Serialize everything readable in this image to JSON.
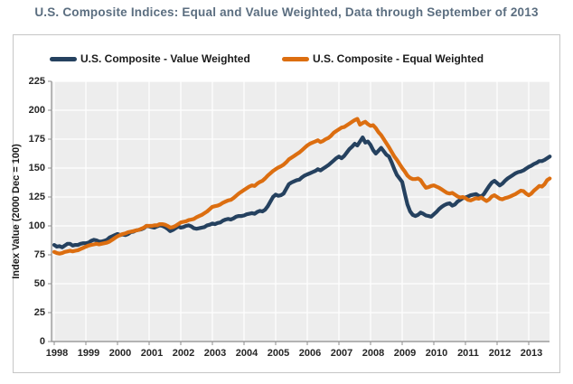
{
  "title": "U.S. Composite Indices: Equal and Value Weighted, Data through September of 2013",
  "legend": [
    {
      "label": "U.S. Composite - Value Weighted",
      "color": "#25415f"
    },
    {
      "label": "U.S. Composite - Equal Weighted",
      "color": "#dc6e10"
    }
  ],
  "y_axis_title": "Index Value (2000 Dec = 100)",
  "colors": {
    "value_weighted": "#25415f",
    "equal_weighted": "#dc6e10",
    "title_text": "#5b6e80",
    "plot_background": "#ededed",
    "gridline": "#ffffff",
    "axis_line": "#8c8c8c",
    "frame_border": "#c6c6c6",
    "tick_text": "#262626"
  },
  "chart_data": {
    "type": "line",
    "title": "U.S. Composite Indices: Equal and Value Weighted, Data through September of 2013",
    "xlabel": "",
    "ylabel": "Index Value (2000 Dec = 100)",
    "ylim": [
      0,
      225
    ],
    "y_ticks": [
      0,
      25,
      50,
      75,
      100,
      125,
      150,
      175,
      200,
      225
    ],
    "x_tick_labels": [
      "1998",
      "1999",
      "2000",
      "2001",
      "2002",
      "2003",
      "2004",
      "2005",
      "2006",
      "2007",
      "2008",
      "2009",
      "2010",
      "2011",
      "2012",
      "2013"
    ],
    "x_start_month": "1998-01",
    "x_end_month": "2013-09",
    "grid": true,
    "legend_position": "top",
    "series": [
      {
        "name": "U.S. Composite - Value Weighted",
        "color": "#25415f",
        "values": [
          83.5,
          82,
          82.5,
          81.5,
          83,
          84.5,
          84.5,
          83,
          83.5,
          83.5,
          84.5,
          85,
          85,
          85.5,
          87,
          88,
          87.5,
          86.5,
          86.5,
          87,
          88,
          90,
          91,
          92,
          93,
          92,
          92.5,
          92,
          93,
          94.5,
          95,
          96,
          96.5,
          97,
          98,
          100,
          99.5,
          99,
          98.5,
          99.5,
          100.5,
          100,
          99,
          97.5,
          95.5,
          96.5,
          98,
          99.5,
          98.5,
          99,
          100,
          100.5,
          99.5,
          98,
          97.5,
          98,
          98.5,
          99,
          100.5,
          101,
          102,
          101.5,
          102.5,
          103,
          104.5,
          105.5,
          106,
          105.5,
          106.5,
          108,
          108.5,
          108.5,
          109,
          110,
          110.5,
          111,
          110.5,
          112,
          113,
          112.5,
          114,
          117,
          121,
          125,
          127,
          126,
          126.5,
          128,
          132,
          136,
          137.5,
          138.5,
          139.5,
          140,
          142,
          143.5,
          144.5,
          145.5,
          146.5,
          147.5,
          149,
          148,
          149.5,
          151,
          152.5,
          154.5,
          156.5,
          158.5,
          160,
          158.5,
          160.5,
          163.5,
          166.5,
          168.5,
          171,
          169.5,
          173,
          176.5,
          172,
          173,
          170,
          165.5,
          162.5,
          165,
          167.5,
          164.5,
          161.5,
          160,
          155,
          149,
          144,
          141,
          138,
          128,
          118.5,
          112.5,
          109.5,
          108.5,
          109.5,
          111.5,
          110.5,
          109,
          108.5,
          108,
          110,
          112,
          114.5,
          116.5,
          118,
          119,
          119.5,
          117.5,
          118.5,
          121,
          122.5,
          124,
          124.5,
          125.5,
          126.5,
          127,
          127.5,
          126,
          125.5,
          127.5,
          131,
          134.5,
          137.5,
          139,
          137,
          135,
          136.5,
          139,
          141,
          142.5,
          144,
          145.5,
          146.5,
          147,
          148,
          149.5,
          151,
          152,
          153.5,
          154.5,
          156,
          156,
          157,
          158.5,
          160
        ]
      },
      {
        "name": "U.S. Composite - Equal Weighted",
        "color": "#dc6e10",
        "values": [
          77.5,
          76.5,
          76,
          76.5,
          77.5,
          78,
          78.5,
          78,
          78.5,
          79,
          80,
          81,
          82,
          83,
          83.5,
          84,
          84.5,
          84,
          84.5,
          85,
          85.5,
          86.5,
          88,
          89.5,
          91,
          92,
          93,
          93.5,
          94.5,
          95,
          95.5,
          96,
          96.5,
          97.5,
          98.5,
          100,
          100,
          100,
          100.5,
          100.5,
          101.5,
          101.5,
          101,
          100,
          98.5,
          99,
          100,
          101.5,
          103,
          103.5,
          104,
          105,
          105.5,
          106,
          107.5,
          108.5,
          109.5,
          111,
          112.5,
          114.5,
          116.5,
          117,
          117.5,
          118.5,
          120,
          121,
          122,
          122.5,
          124,
          126,
          128,
          129.5,
          131,
          132.5,
          134,
          135,
          134.5,
          136.5,
          138,
          139,
          141,
          143.5,
          145.5,
          147.5,
          149,
          150.5,
          151.5,
          153,
          155,
          157.5,
          159,
          160.5,
          162,
          163.5,
          165.5,
          167.5,
          169.5,
          171,
          172,
          173,
          174,
          172.5,
          173.5,
          175,
          176,
          178,
          180.5,
          182,
          183.5,
          185,
          185.5,
          187,
          188.5,
          190,
          191.5,
          192.5,
          187.5,
          189,
          190,
          188,
          186.5,
          187,
          184.5,
          181,
          178.5,
          175,
          171.5,
          168,
          164,
          160,
          157,
          153.5,
          150,
          147,
          143.5,
          141.5,
          140.5,
          140.5,
          141,
          139.5,
          136,
          133,
          133.5,
          134.5,
          135,
          134,
          133,
          131.5,
          130,
          128.5,
          128,
          128.5,
          127,
          125.5,
          124.5,
          125,
          124,
          122.5,
          122,
          123,
          124,
          123.5,
          124.5,
          123,
          121.5,
          123,
          125.5,
          126.5,
          125,
          123.5,
          123,
          124,
          124.5,
          125.5,
          126.5,
          127.5,
          129,
          130.5,
          130,
          128,
          126.5,
          128,
          130.5,
          132.5,
          134.5,
          134,
          136,
          139.5,
          141
        ]
      }
    ]
  }
}
